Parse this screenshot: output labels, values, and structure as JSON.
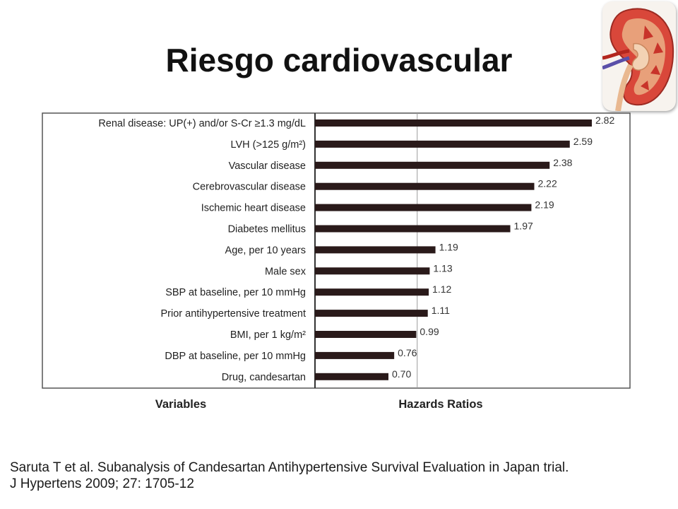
{
  "slide": {
    "title": "Riesgo cardiovascular"
  },
  "chart_data": {
    "type": "bar",
    "orientation": "horizontal",
    "categories": [
      "Renal disease: UP(+) and/or S-Cr ≥1.3 mg/dL",
      "LVH (>125 g/m²)",
      "Vascular disease",
      "Cerebrovascular disease",
      "Ischemic heart disease",
      "Diabetes mellitus",
      "Age, per 10 years",
      "Male sex",
      "SBP at baseline, per 10 mmHg",
      "Prior antihypertensive treatment",
      "BMI, per 1 kg/m²",
      "DBP at baseline, per 10 mmHg",
      "Drug, candesartan"
    ],
    "values": [
      2.82,
      2.59,
      2.38,
      2.22,
      2.19,
      1.97,
      1.19,
      1.13,
      1.12,
      1.11,
      0.99,
      0.76,
      0.7
    ],
    "value_labels": [
      "2.82",
      "2.59",
      "2.38",
      "2.22",
      "2.19",
      "1.97",
      "1.19",
      "1.13",
      "1.12",
      "1.11",
      "0.99",
      "0.76",
      "0.70"
    ],
    "reference_line": 1.0,
    "xlabel": "Hazards Ratios",
    "ylabel": "Variables",
    "bar_color": "#2a1a1a"
  },
  "citation": {
    "line1": "Saruta T et al. Subanalysis of Candesartan Antihypertensive Survival Evaluation in Japan trial.",
    "line2": "J Hypertens 2009; 27: 1705-12"
  },
  "colors": {
    "accent_kidney": "#c8332a",
    "text": "#111111"
  },
  "icons": {
    "corner_image": "kidney-icon"
  }
}
